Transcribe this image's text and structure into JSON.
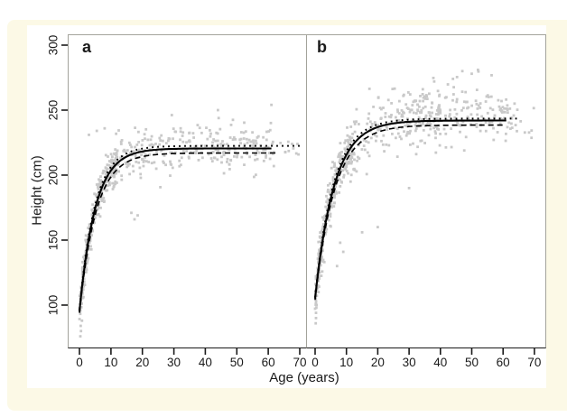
{
  "figure": {
    "background_color": "#fcf9e6",
    "plot_background": "#ffffff",
    "panel_border_color": "#a3a39b",
    "axis_line_color": "#1a1a1a",
    "tick_color": "#1a1a1a",
    "point_color": "#c9c9c9",
    "curve_color": "#000000",
    "text_color": "#1a1a1a"
  },
  "chart_data": {
    "type": "scatter",
    "title": "",
    "xlabel": "Age (years)",
    "ylabel": "Height (cm)",
    "x_ticks": [
      0,
      10,
      20,
      30,
      40,
      50,
      60,
      70
    ],
    "y_ticks": [
      100,
      150,
      200,
      250,
      300
    ],
    "xlim": [
      -3.5,
      72.5
    ],
    "ylim": [
      67,
      308
    ],
    "grid": "off",
    "legend": "none",
    "growth_model": "H(age) = A - (A - H0) * exp(-k * age)",
    "panels": [
      {
        "label": "a",
        "curves": [
          {
            "style": "solid",
            "A": 220.5,
            "H0": 95,
            "k": 0.2,
            "age_range": [
              0,
              61
            ]
          },
          {
            "style": "dotted",
            "A": 222.5,
            "H0": 96,
            "k": 0.205,
            "age_range": [
              0,
              70.5
            ]
          },
          {
            "style": "dashed",
            "A": 217.0,
            "H0": 94,
            "k": 0.19,
            "age_range": [
              0,
              63
            ]
          }
        ],
        "scatter": {
          "seed": 20240601,
          "y_clip": [
            73,
            256
          ],
          "clusters": [
            {
              "n": 65,
              "age": [
                0,
                2.5
              ],
              "sd": 7,
              "dy": 0
            },
            {
              "n": 240,
              "age": [
                0.5,
                12
              ],
              "sd": 7.5,
              "dy": 0
            },
            {
              "n": 90,
              "age": [
                10,
                24
              ],
              "sd": 9,
              "dy": 1
            },
            {
              "n": 200,
              "age": [
                24,
                62
              ],
              "sd": 9.5,
              "dy": 2
            },
            {
              "n": 10,
              "age": [
                62,
                71
              ],
              "sd": 6,
              "dy": -2
            }
          ],
          "outliers": [
            [
              0.3,
              76
            ],
            [
              0.5,
              80
            ],
            [
              0.4,
              84
            ],
            [
              0.8,
              88
            ],
            [
              17.5,
              166
            ],
            [
              18.5,
              169
            ],
            [
              16.5,
              171
            ],
            [
              3,
              231
            ],
            [
              5.5,
              234
            ],
            [
              8,
              236
            ],
            [
              61,
              254
            ],
            [
              44,
              250
            ]
          ]
        }
      },
      {
        "label": "b",
        "curves": [
          {
            "style": "solid",
            "A": 242.0,
            "H0": 105,
            "k": 0.165,
            "age_range": [
              0,
              61
            ]
          },
          {
            "style": "dotted",
            "A": 243.5,
            "H0": 106,
            "k": 0.17,
            "age_range": [
              0,
              64.5
            ]
          },
          {
            "style": "dashed",
            "A": 238.5,
            "H0": 104,
            "k": 0.16,
            "age_range": [
              0,
              61
            ]
          }
        ],
        "scatter": {
          "seed": 987654,
          "y_clip": [
            73,
            284
          ],
          "clusters": [
            {
              "n": 70,
              "age": [
                0,
                2.5
              ],
              "sd": 8,
              "dy": 0
            },
            {
              "n": 210,
              "age": [
                0.5,
                12
              ],
              "sd": 9,
              "dy": 0
            },
            {
              "n": 90,
              "age": [
                10,
                25
              ],
              "sd": 11,
              "dy": 0
            },
            {
              "n": 120,
              "age": [
                25,
                40
              ],
              "sd": 12,
              "dy": 3
            },
            {
              "n": 110,
              "age": [
                33,
                57
              ],
              "sd": 12,
              "dy": 5
            },
            {
              "n": 45,
              "age": [
                55,
                64
              ],
              "sd": 9,
              "dy": 2
            },
            {
              "n": 10,
              "age": [
                62,
                71
              ],
              "sd": 8,
              "dy": -4
            }
          ],
          "outliers": [
            [
              0.2,
              86
            ],
            [
              0.3,
              90
            ],
            [
              0.3,
              94
            ],
            [
              0.4,
              98
            ],
            [
              47,
              280
            ],
            [
              50,
              278
            ],
            [
              44,
              274
            ],
            [
              52,
              281
            ],
            [
              38,
              272
            ],
            [
              20,
              160
            ],
            [
              15,
              156
            ],
            [
              8,
              148
            ],
            [
              30,
              190
            ],
            [
              7,
              130
            ],
            [
              9,
              141
            ]
          ]
        }
      }
    ]
  }
}
